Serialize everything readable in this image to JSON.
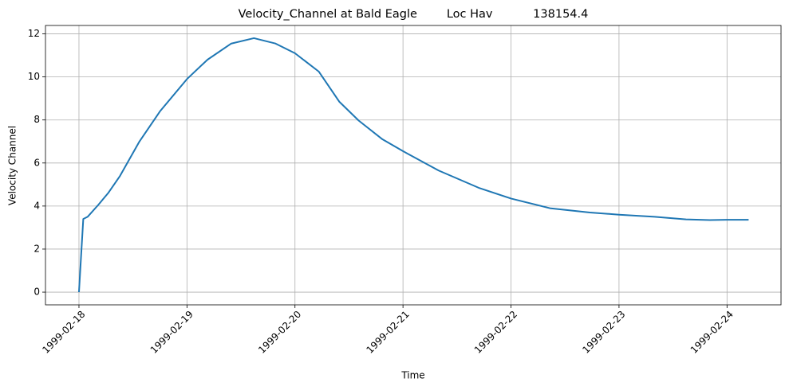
{
  "chart_data": {
    "type": "line",
    "title": "Velocity_Channel at Bald Eagle        Loc Hav           138154.4",
    "x_label": "Time",
    "y_label": "Velocity Channel",
    "x": [
      0,
      0.04,
      0.08,
      0.18,
      0.27,
      0.38,
      0.56,
      0.75,
      1.0,
      1.19,
      1.41,
      1.62,
      1.82,
      2.0,
      2.22,
      2.41,
      2.59,
      2.81,
      3.0,
      3.33,
      3.7,
      4.0,
      4.36,
      4.73,
      5.0,
      5.33,
      5.62,
      5.84,
      6.0,
      6.2
    ],
    "series": [
      {
        "name": "Velocity Channel",
        "color": "#1f77b4",
        "values": [
          0,
          3.4,
          3.5,
          4.06,
          4.6,
          5.4,
          7.0,
          8.4,
          9.9,
          10.8,
          11.55,
          11.8,
          11.55,
          11.1,
          10.25,
          8.85,
          7.97,
          7.1,
          6.55,
          5.65,
          4.85,
          4.35,
          3.9,
          3.7,
          3.6,
          3.5,
          3.38,
          3.35,
          3.36,
          3.36
        ]
      }
    ],
    "xlim": [
      -0.31,
      6.5
    ],
    "ylim": [
      -0.59,
      12.39
    ],
    "xticks": [
      {
        "value": 0,
        "label": "1999-02-18"
      },
      {
        "value": 1,
        "label": "1999-02-19"
      },
      {
        "value": 2,
        "label": "1999-02-20"
      },
      {
        "value": 3,
        "label": "1999-02-21"
      },
      {
        "value": 4,
        "label": "1999-02-22"
      },
      {
        "value": 5,
        "label": "1999-02-23"
      },
      {
        "value": 6,
        "label": "1999-02-24"
      }
    ],
    "yticks": [
      0,
      2,
      4,
      6,
      8,
      10,
      12
    ],
    "grid": true
  }
}
